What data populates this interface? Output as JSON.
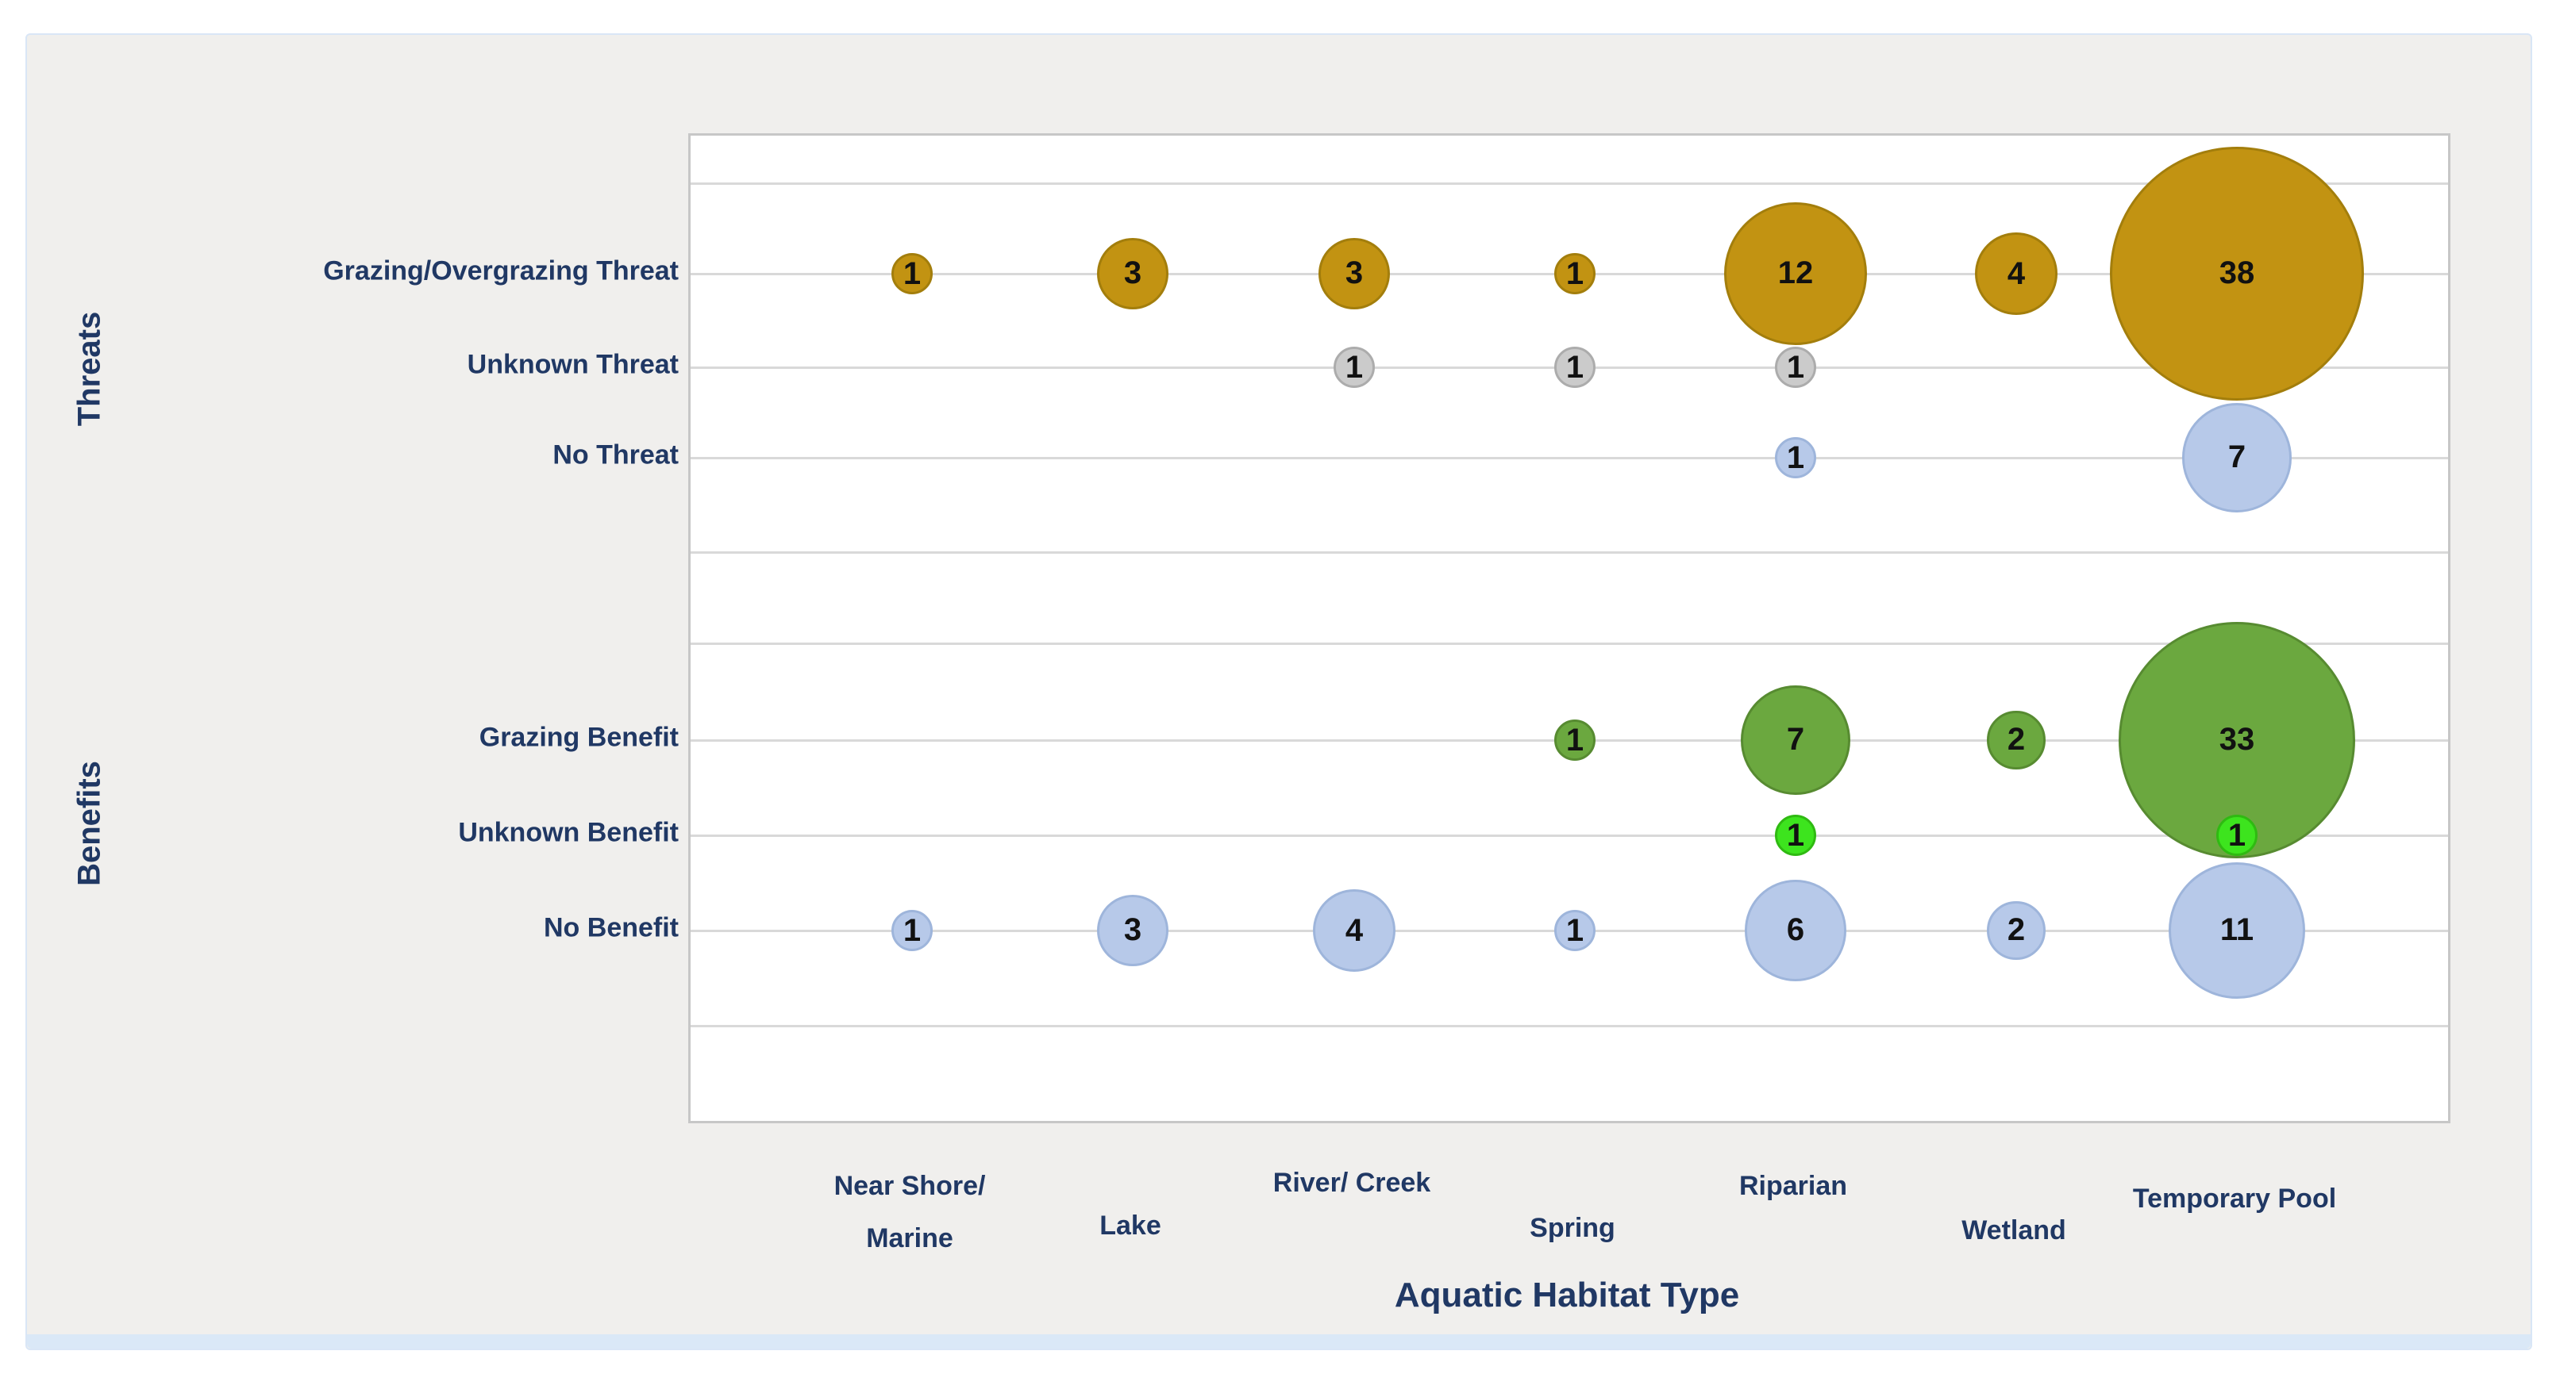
{
  "panel": {
    "background_color": "#F0EFED",
    "border_color": "#D9E6F6",
    "plot_background": "#FFFFFF",
    "plot_border_color": "#C7C7C7",
    "gridline_color": "#D9D9D9",
    "label_color": "#203864",
    "number_color": "#111111"
  },
  "y_axis": {
    "group_labels": [
      "Threats",
      "Benefits"
    ],
    "category_labels": [
      "Grazing/Overgrazing Threat",
      "Unknown Threat",
      "No Threat",
      "Grazing Benefit",
      "Unknown Benefit",
      "No Benefit"
    ]
  },
  "x_axis": {
    "title": "Aquatic Habitat Type",
    "category_label_lines": [
      [
        "Near Shore/",
        "Marine"
      ],
      [
        "Lake"
      ],
      [
        "River/ Creek"
      ],
      [
        "Spring"
      ],
      [
        "Riparian"
      ],
      [
        "Wetland"
      ],
      [
        "Temporary Pool"
      ]
    ]
  },
  "chart_data": {
    "type": "bubble",
    "title": "",
    "xlabel": "Aquatic Habitat Type",
    "ylabel_groups": [
      "Threats",
      "Benefits"
    ],
    "x_categories": [
      "Near Shore/ Marine",
      "Lake",
      "River/ Creek",
      "Spring",
      "Riparian",
      "Wetland",
      "Temporary Pool"
    ],
    "y_categories": [
      "Grazing/Overgrazing Threat",
      "Unknown Threat",
      "No Threat",
      "Grazing Benefit",
      "Unknown Benefit",
      "No Benefit"
    ],
    "size_encoding": "bubble area proportional to count; data label shows count",
    "grid": "horizontal gridlines only",
    "series": [
      {
        "name": "Grazing/Overgrazing Threat",
        "color": "#C29312",
        "border_color": "#A37E0C",
        "values": [
          1,
          3,
          3,
          1,
          12,
          4,
          38
        ]
      },
      {
        "name": "Unknown Threat",
        "color": "#CBCBCB",
        "border_color": "#ACACAC",
        "values": [
          null,
          null,
          1,
          1,
          1,
          null,
          null
        ]
      },
      {
        "name": "No Threat",
        "color": "#B7C9E9",
        "border_color": "#9EB5DB",
        "values": [
          null,
          null,
          null,
          null,
          1,
          null,
          7
        ]
      },
      {
        "name": "Grazing Benefit",
        "color": "#6BA83F",
        "border_color": "#578B31",
        "values": [
          null,
          null,
          null,
          1,
          7,
          2,
          33
        ]
      },
      {
        "name": "Unknown Benefit",
        "color": "#3DE41E",
        "border_color": "#2FBA12",
        "values": [
          null,
          null,
          null,
          null,
          1,
          null,
          1
        ]
      },
      {
        "name": "No Benefit",
        "color": "#B7C9E9",
        "border_color": "#9EB5DB",
        "values": [
          1,
          3,
          4,
          1,
          6,
          2,
          11
        ]
      }
    ]
  }
}
